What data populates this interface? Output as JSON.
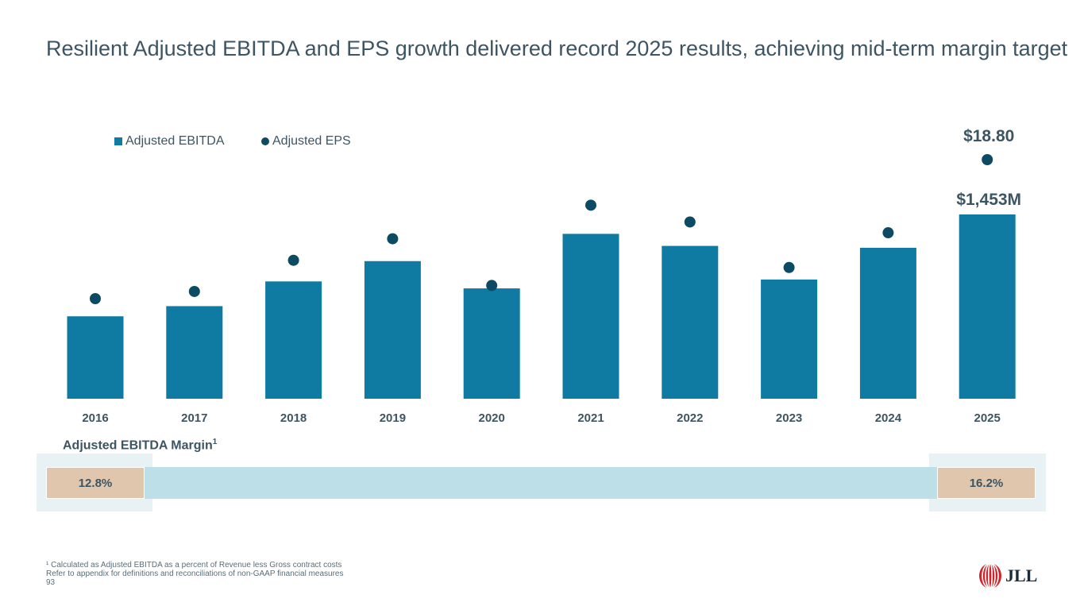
{
  "title": "Resilient Adjusted EBITDA and EPS growth delivered record 2025 results, achieving mid-term margin target",
  "legend": {
    "ebitda_label": "Adjusted EBITDA",
    "eps_label": "Adjusted EPS"
  },
  "colors": {
    "bar": "#0f7aa2",
    "dot": "#0d4a63",
    "margin_band": "#bde0e8",
    "margin_box": "#dfc6ac"
  },
  "chart_data": {
    "type": "bar",
    "categories": [
      "2016",
      "2017",
      "2018",
      "2019",
      "2020",
      "2021",
      "2022",
      "2023",
      "2024",
      "2025"
    ],
    "series": [
      {
        "name": "Adjusted EBITDA",
        "kind": "bar",
        "unit": "$M",
        "values": [
          650,
          730,
          925,
          1085,
          870,
          1300,
          1205,
          940,
          1190,
          1453
        ]
      },
      {
        "name": "Adjusted EPS",
        "kind": "dot",
        "unit": "$",
        "values": [
          7.2,
          7.8,
          10.4,
          12.2,
          8.3,
          15.0,
          13.6,
          9.8,
          12.7,
          18.8
        ]
      }
    ],
    "annotations": {
      "eps_last": "$18.80",
      "ebitda_last": "$1,453M"
    },
    "grid": false,
    "legend_position": "top-left"
  },
  "margin": {
    "title": "Adjusted EBITDA Margin",
    "title_sup": "1",
    "start_value": "12.8%",
    "end_value": "16.2%"
  },
  "footnotes": {
    "line1": "¹ Calculated as Adjusted EBITDA as a percent of Revenue less Gross contract costs",
    "line2": "Refer to appendix for definitions and reconciliations of non-GAAP financial measures",
    "page": "93"
  },
  "logo": {
    "text": "JLL"
  }
}
